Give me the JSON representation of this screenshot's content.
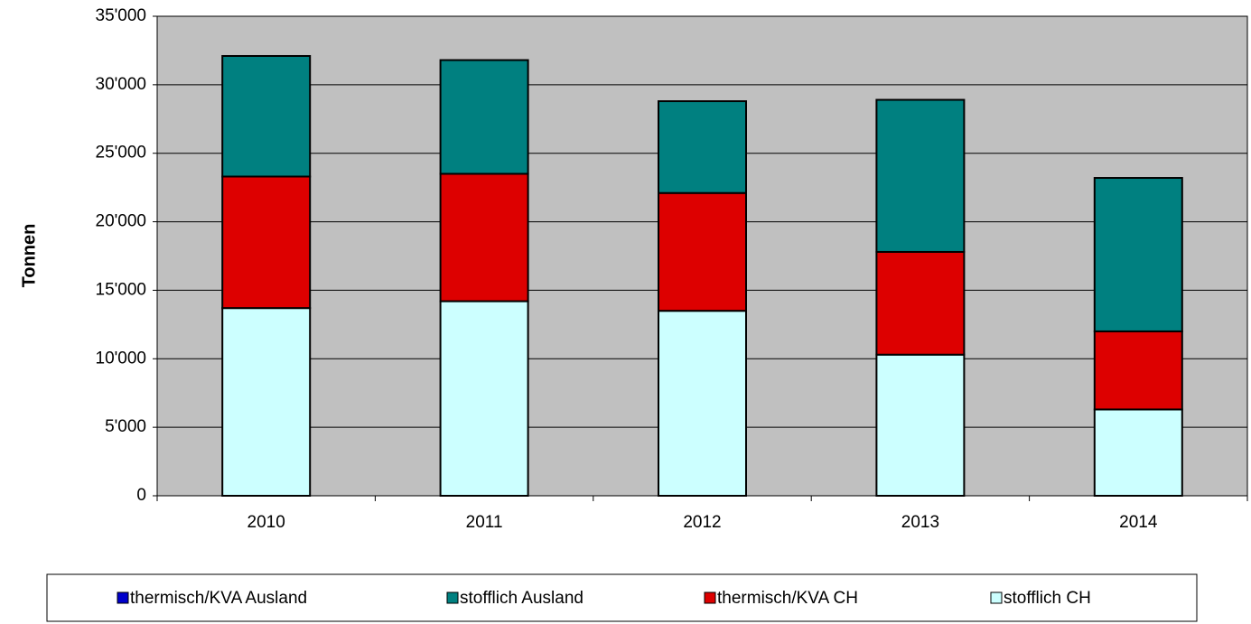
{
  "chart_data": {
    "type": "stacked_bar",
    "ylabel": "Tonnen",
    "categories": [
      "2010",
      "2011",
      "2012",
      "2013",
      "2014"
    ],
    "series": [
      {
        "name": "thermisch/KVA Ausland",
        "color": "#0000cc",
        "values": [
          0,
          0,
          0,
          0,
          0
        ]
      },
      {
        "name": "stofflich Ausland",
        "color": "#008080",
        "values": [
          8800,
          8300,
          6700,
          11100,
          11200
        ]
      },
      {
        "name": "thermisch/KVA CH",
        "color": "#dd0000",
        "values": [
          9600,
          9300,
          8600,
          7500,
          5700
        ]
      },
      {
        "name": "stofflich CH",
        "color": "#ccffff",
        "values": [
          13700,
          14200,
          13500,
          10300,
          6300
        ]
      }
    ],
    "ylim": [
      0,
      35000
    ],
    "yticks": [
      0,
      {
        "value": 5000,
        "label": "5'000"
      },
      {
        "value": 10000,
        "label": "10'000"
      },
      {
        "value": 15000,
        "label": "15'000"
      },
      {
        "value": 20000,
        "label": "20'000"
      },
      {
        "value": 25000,
        "label": "25'000"
      },
      {
        "value": 30000,
        "label": "30'000"
      },
      {
        "value": 35000,
        "label": "35'000"
      }
    ],
    "grid": true,
    "legend": "bottom"
  }
}
